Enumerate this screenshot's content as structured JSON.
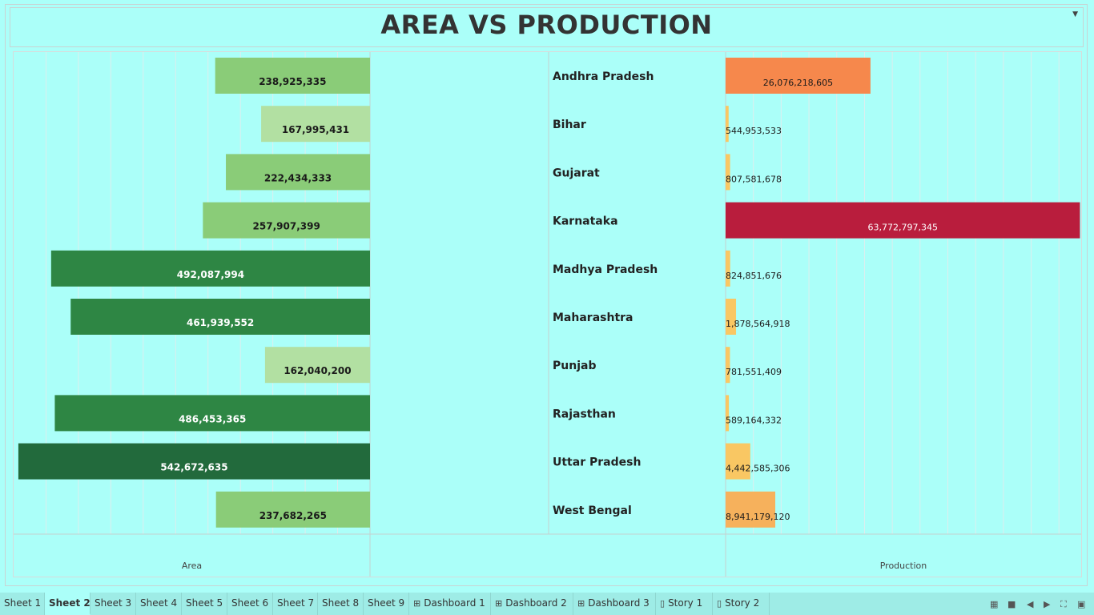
{
  "title": "AREA VS PRODUCTION",
  "chart_data": {
    "type": "bar",
    "categories": [
      "Andhra Pradesh",
      "Bihar",
      "Gujarat",
      "Karnataka",
      "Madhya Pradesh",
      "Maharashtra",
      "Punjab",
      "Rajasthan",
      "Uttar Pradesh",
      "West Bengal"
    ],
    "series": [
      {
        "name": "Area",
        "values": [
          238925335,
          167995431,
          222434333,
          257907399,
          492087994,
          461939552,
          162040200,
          486453365,
          542672635,
          237682265
        ]
      },
      {
        "name": "Production",
        "values": [
          26076218605,
          544953533,
          807581678,
          63772797345,
          824851676,
          1878564918,
          781551409,
          589164332,
          4442585306,
          8941179120
        ]
      }
    ],
    "labels": {
      "area": [
        "238,925,335",
        "167,995,431",
        "222,434,333",
        "257,907,399",
        "492,087,994",
        "461,939,552",
        "162,040,200",
        "486,453,365",
        "542,672,635",
        "237,682,265"
      ],
      "production": [
        "26,076,218,605",
        "544,953,533",
        "807,581,678",
        "63,772,797,345",
        "824,851,676",
        "1,878,564,918",
        "781,551,409",
        "589,164,332",
        "4,442,585,306",
        "8,941,179,120"
      ]
    },
    "xlabel_left": "Area",
    "xlabel_right": "Production",
    "area_axis_max": 550000000,
    "production_axis_max": 64000000000,
    "colors": {
      "area_scale": [
        "#b2e0a2",
        "#8acc78",
        "#2e8644",
        "#226a3c"
      ],
      "production_scale": [
        "#f9c763",
        "#f6b15c",
        "#f6884c",
        "#b91d3d"
      ],
      "grid": "#ddeeee",
      "divider": "#c6d0d0"
    }
  },
  "tabs": [
    {
      "label": "Sheet 1",
      "icon": ""
    },
    {
      "label": "Sheet 2",
      "icon": "",
      "active": true
    },
    {
      "label": "Sheet 3",
      "icon": ""
    },
    {
      "label": "Sheet 4",
      "icon": ""
    },
    {
      "label": "Sheet 5",
      "icon": ""
    },
    {
      "label": "Sheet 6",
      "icon": ""
    },
    {
      "label": "Sheet 7",
      "icon": ""
    },
    {
      "label": "Sheet 8",
      "icon": ""
    },
    {
      "label": "Sheet 9",
      "icon": ""
    },
    {
      "label": "Dashboard 1",
      "icon": "dashboard-icon"
    },
    {
      "label": "Dashboard 2",
      "icon": "dashboard-icon"
    },
    {
      "label": "Dashboard 3",
      "icon": "dashboard-icon"
    },
    {
      "label": "Story 1",
      "icon": "story-icon"
    },
    {
      "label": "Story 2",
      "icon": "story-icon"
    }
  ]
}
